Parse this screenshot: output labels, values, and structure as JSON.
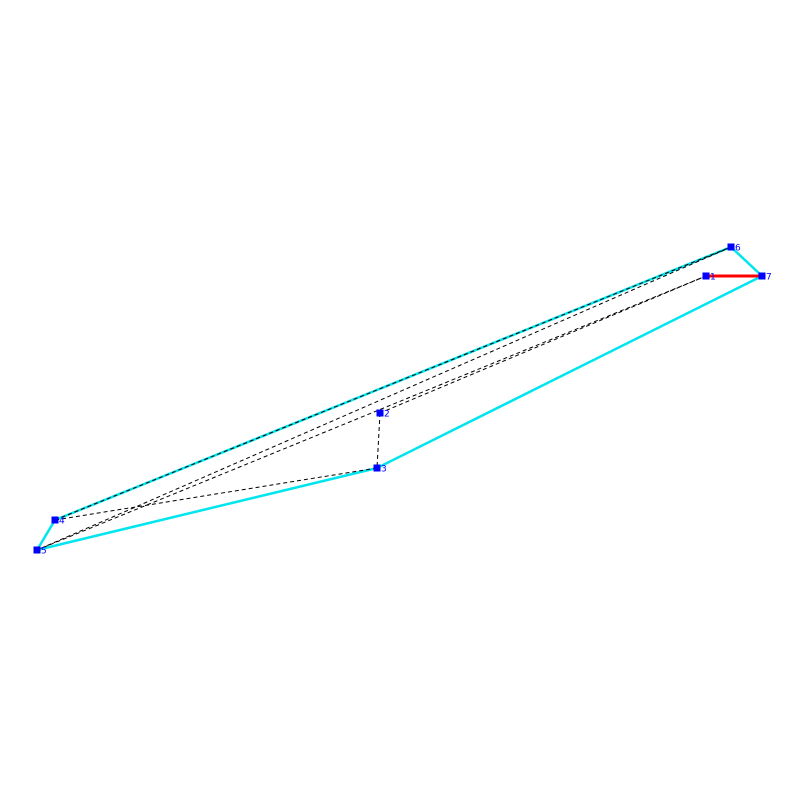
{
  "colors": {
    "hull": "#00e5ee",
    "path": "#000000",
    "highlight": "#ff0000",
    "point": "#0000ff",
    "label": "#0000ff",
    "background": "#ffffff"
  },
  "points": [
    {
      "id": "p1",
      "label": "1"
    },
    {
      "id": "p2",
      "label": "2"
    },
    {
      "id": "p3",
      "label": "3"
    },
    {
      "id": "p4",
      "label": "4"
    },
    {
      "id": "p5",
      "label": "5"
    },
    {
      "id": "p6",
      "label": "6"
    },
    {
      "id": "p7",
      "label": "7"
    }
  ],
  "hull_order": [
    "p6",
    "p7",
    "p3",
    "p5",
    "p4"
  ],
  "path_order": [
    "p1",
    "p2",
    "p3",
    "p4",
    "p6",
    "p5",
    "p1"
  ],
  "highlight_edge": [
    "p1",
    "p7"
  ]
}
